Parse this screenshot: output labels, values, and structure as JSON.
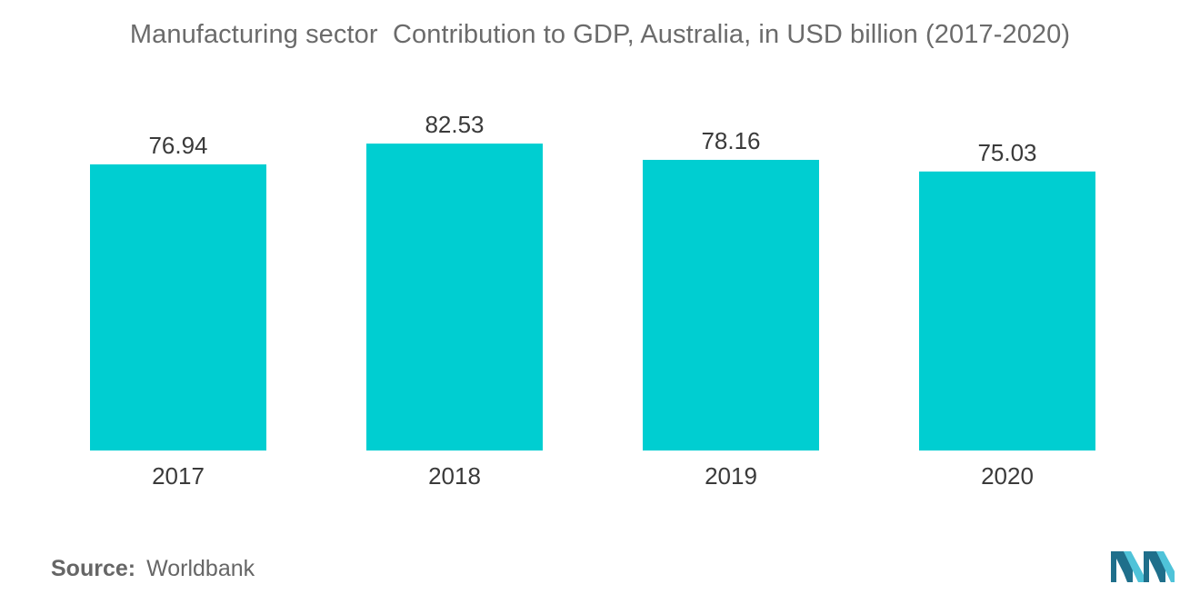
{
  "title": "Manufacturing sector  Contribution to GDP, Australia, in USD billion (2017-2020)",
  "source": {
    "label": "Source:",
    "value": "Worldbank"
  },
  "colors": {
    "bar": "#00ced1",
    "logo_dark": "#1f6f8b",
    "logo_light": "#4fc3d9"
  },
  "logo_icon": "mordor-intelligence-logo-icon",
  "chart_data": {
    "type": "bar",
    "categories": [
      "2017",
      "2018",
      "2019",
      "2020"
    ],
    "values": [
      76.94,
      82.53,
      78.16,
      75.03
    ],
    "value_labels": [
      "76.94",
      "82.53",
      "78.16",
      "75.03"
    ],
    "title": "Manufacturing sector  Contribution to GDP, Australia, in USD billion (2017-2020)",
    "xlabel": "",
    "ylabel": "",
    "ylim": [
      0,
      84.5
    ],
    "grid": false,
    "legend": "none"
  }
}
